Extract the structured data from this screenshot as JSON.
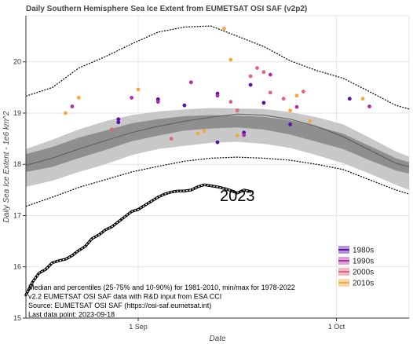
{
  "chart_data": {
    "type": "line",
    "title": "Daily Southern Hemisphere Sea Ice Extent from EUMETSAT OSI SAF (v2p2)",
    "xlabel": "Date",
    "ylabel": "Daily Sea Ice Extent - 1e6 km^2",
    "xlim": [
      "2023-08-15",
      "2023-10-12"
    ],
    "ylim": [
      15.0,
      20.9
    ],
    "yticks": [
      15,
      16,
      17,
      18,
      19,
      20
    ],
    "xticks": [
      {
        "date": "2023-09-01",
        "label": "1 Sep"
      },
      {
        "date": "2023-10-01",
        "label": "1 Oct"
      }
    ],
    "grid": true,
    "notes": [
      "Median and percentiles (25-75% and 10-90%) for 1981-2010, min/max for 1978-2022",
      "v2.2 EUMETSAT OSI SAF data with R&D input from ESA CCI",
      "Source: EUMETSAT OSI SAF (https://osi-saf.eumetsat.int)",
      "Last data point: 2023-09-18"
    ],
    "annotation": "2023",
    "climatology": {
      "dates": [
        "2023-08-15",
        "2023-08-19",
        "2023-08-23",
        "2023-08-27",
        "2023-08-31",
        "2023-09-04",
        "2023-09-08",
        "2023-09-12",
        "2023-09-16",
        "2023-09-20",
        "2023-09-24",
        "2023-09-28",
        "2023-10-02",
        "2023-10-06",
        "2023-10-10",
        "2023-10-12"
      ],
      "max": [
        19.33,
        19.5,
        19.88,
        20.1,
        20.35,
        20.58,
        20.68,
        20.7,
        20.5,
        20.3,
        20.02,
        19.83,
        19.68,
        19.42,
        19.15,
        19.08
      ],
      "p90": [
        18.3,
        18.48,
        18.68,
        18.84,
        18.96,
        19.03,
        19.07,
        19.1,
        19.09,
        19.08,
        19.02,
        18.92,
        18.78,
        18.52,
        18.25,
        18.15
      ],
      "p75": [
        18.2,
        18.34,
        18.52,
        18.66,
        18.8,
        18.88,
        18.94,
        18.96,
        18.95,
        18.93,
        18.86,
        18.74,
        18.6,
        18.36,
        18.12,
        18.04
      ],
      "median": [
        17.98,
        18.12,
        18.3,
        18.46,
        18.62,
        18.74,
        18.84,
        18.92,
        18.98,
        18.96,
        18.88,
        18.74,
        18.54,
        18.28,
        18.02,
        17.95
      ],
      "p25": [
        17.85,
        17.95,
        18.12,
        18.28,
        18.45,
        18.56,
        18.66,
        18.7,
        18.72,
        18.68,
        18.58,
        18.44,
        18.3,
        18.08,
        17.88,
        17.82
      ],
      "p10": [
        17.56,
        17.68,
        17.85,
        18.0,
        18.18,
        18.3,
        18.36,
        18.42,
        18.44,
        18.4,
        18.32,
        18.18,
        18.02,
        17.82,
        17.6,
        17.5
      ],
      "min": [
        17.18,
        17.36,
        17.55,
        17.7,
        17.85,
        17.96,
        18.06,
        18.12,
        18.14,
        18.12,
        18.08,
        18.0,
        17.9,
        17.7,
        17.5,
        17.42
      ]
    },
    "series_2023": {
      "dates": [
        "2023-08-15",
        "2023-08-16",
        "2023-08-17",
        "2023-08-18",
        "2023-08-19",
        "2023-08-20",
        "2023-08-21",
        "2023-08-22",
        "2023-08-23",
        "2023-08-24",
        "2023-08-25",
        "2023-08-26",
        "2023-08-27",
        "2023-08-28",
        "2023-08-29",
        "2023-08-30",
        "2023-08-31",
        "2023-09-01",
        "2023-09-02",
        "2023-09-03",
        "2023-09-04",
        "2023-09-05",
        "2023-09-06",
        "2023-09-07",
        "2023-09-08",
        "2023-09-09",
        "2023-09-10",
        "2023-09-11",
        "2023-09-12",
        "2023-09-13",
        "2023-09-14",
        "2023-09-15",
        "2023-09-16",
        "2023-09-17",
        "2023-09-18"
      ],
      "values": [
        15.45,
        15.7,
        15.88,
        15.95,
        16.08,
        16.12,
        16.15,
        16.22,
        16.32,
        16.4,
        16.55,
        16.62,
        16.72,
        16.78,
        16.88,
        16.98,
        17.08,
        17.12,
        17.2,
        17.28,
        17.36,
        17.42,
        17.46,
        17.48,
        17.48,
        17.5,
        17.56,
        17.6,
        17.58,
        17.56,
        17.53,
        17.49,
        17.44,
        17.5,
        17.47
      ]
    },
    "maxima": {
      "legend": [
        {
          "label": "1980s",
          "color": "#5b0fa6"
        },
        {
          "label": "1990s",
          "color": "#b02fa8"
        },
        {
          "label": "2000s",
          "color": "#e0657a"
        },
        {
          "label": "2010s",
          "color": "#f6a93b"
        }
      ],
      "points": [
        {
          "date": "2023-08-29",
          "value": 18.82,
          "decade": "1980s"
        },
        {
          "date": "2023-08-29",
          "value": 18.88,
          "decade": "1980s"
        },
        {
          "date": "2023-09-04",
          "value": 19.27,
          "decade": "1980s"
        },
        {
          "date": "2023-09-08",
          "value": 19.15,
          "decade": "1980s"
        },
        {
          "date": "2023-09-13",
          "value": 18.43,
          "decade": "1980s"
        },
        {
          "date": "2023-09-13",
          "value": 19.38,
          "decade": "1980s"
        },
        {
          "date": "2023-09-17",
          "value": 18.62,
          "decade": "1980s"
        },
        {
          "date": "2023-09-18",
          "value": 19.55,
          "decade": "1980s"
        },
        {
          "date": "2023-09-20",
          "value": 19.2,
          "decade": "1980s"
        },
        {
          "date": "2023-09-24",
          "value": 18.78,
          "decade": "1980s"
        },
        {
          "date": "2023-10-03",
          "value": 19.28,
          "decade": "1980s"
        },
        {
          "date": "2023-08-22",
          "value": 19.13,
          "decade": "1990s"
        },
        {
          "date": "2023-08-31",
          "value": 19.3,
          "decade": "1990s"
        },
        {
          "date": "2023-09-04",
          "value": 19.22,
          "decade": "1990s"
        },
        {
          "date": "2023-09-09",
          "value": 19.6,
          "decade": "1990s"
        },
        {
          "date": "2023-09-13",
          "value": 19.34,
          "decade": "1990s"
        },
        {
          "date": "2023-09-17",
          "value": 18.57,
          "decade": "1990s"
        },
        {
          "date": "2023-09-21",
          "value": 19.75,
          "decade": "1990s"
        },
        {
          "date": "2023-09-25",
          "value": 19.12,
          "decade": "1990s"
        },
        {
          "date": "2023-10-06",
          "value": 19.13,
          "decade": "1990s"
        },
        {
          "date": "2023-09-15",
          "value": 19.22,
          "decade": "2000s"
        },
        {
          "date": "2023-09-16",
          "value": 19.05,
          "decade": "2000s"
        },
        {
          "date": "2023-09-18",
          "value": 19.72,
          "decade": "2000s"
        },
        {
          "date": "2023-09-19",
          "value": 19.88,
          "decade": "2000s"
        },
        {
          "date": "2023-09-20",
          "value": 19.8,
          "decade": "2000s"
        },
        {
          "date": "2023-09-21",
          "value": 19.4,
          "decade": "2000s"
        },
        {
          "date": "2023-09-23",
          "value": 19.28,
          "decade": "2000s"
        },
        {
          "date": "2023-09-26",
          "value": 19.42,
          "decade": "2000s"
        },
        {
          "date": "2023-08-28",
          "value": 18.68,
          "decade": "2000s"
        },
        {
          "date": "2023-09-06",
          "value": 18.5,
          "decade": "2000s"
        },
        {
          "date": "2023-08-21",
          "value": 19.0,
          "decade": "2010s"
        },
        {
          "date": "2023-08-23",
          "value": 19.3,
          "decade": "2010s"
        },
        {
          "date": "2023-09-01",
          "value": 19.46,
          "decade": "2010s"
        },
        {
          "date": "2023-09-10",
          "value": 18.6,
          "decade": "2010s"
        },
        {
          "date": "2023-09-11",
          "value": 18.65,
          "decade": "2010s"
        },
        {
          "date": "2023-09-14",
          "value": 20.65,
          "decade": "2010s"
        },
        {
          "date": "2023-09-15",
          "value": 20.04,
          "decade": "2010s"
        },
        {
          "date": "2023-09-16",
          "value": 18.56,
          "decade": "2010s"
        },
        {
          "date": "2023-09-24",
          "value": 19.05,
          "decade": "2010s"
        },
        {
          "date": "2023-09-25",
          "value": 19.34,
          "decade": "2010s"
        },
        {
          "date": "2023-09-27",
          "value": 18.84,
          "decade": "2010s"
        },
        {
          "date": "2023-10-05",
          "value": 19.28,
          "decade": "2010s"
        }
      ]
    }
  }
}
